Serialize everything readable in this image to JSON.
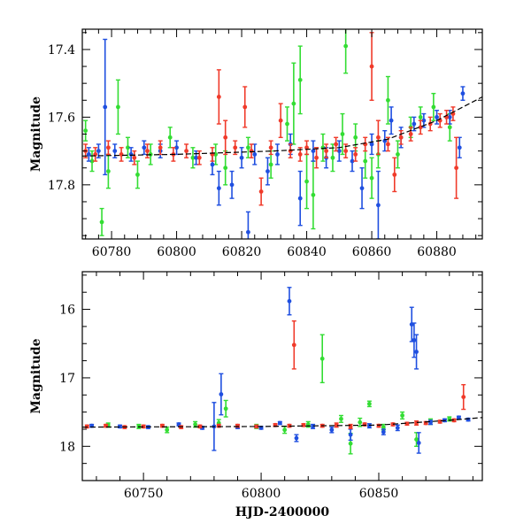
{
  "chart_data": [
    {
      "type": "scatter",
      "title": "",
      "xlabel": "",
      "ylabel": "Magnitude",
      "xlim": [
        60771,
        60894
      ],
      "ylim": [
        17.96,
        17.34
      ],
      "y_inverted": true,
      "grid": false,
      "x_ticks": [
        60780,
        60800,
        60820,
        60840,
        60860,
        60880
      ],
      "x_tick_labels": [
        "60780",
        "60800",
        "60820",
        "60840",
        "60860",
        "60880"
      ],
      "y_ticks": [
        17.4,
        17.6,
        17.8
      ],
      "y_tick_labels": [
        "17.4",
        "17.6",
        "17.8"
      ],
      "colors": {
        "blue": "#1f4fe0",
        "green": "#33dd33",
        "red": "#f03a2a",
        "model": "#000000"
      },
      "series": [
        {
          "color": "green",
          "points": [
            [
              60772,
              17.64,
              0.03
            ],
            [
              60774,
              17.73,
              0.03
            ],
            [
              60777,
              17.91,
              0.04
            ],
            [
              60779,
              17.76,
              0.05
            ],
            [
              60782,
              17.57,
              0.08
            ],
            [
              60785,
              17.69,
              0.03
            ],
            [
              60788,
              17.77,
              0.04
            ],
            [
              60792,
              17.71,
              0.03
            ],
            [
              60798,
              17.66,
              0.03
            ],
            [
              60805,
              17.72,
              0.03
            ],
            [
              60812,
              17.71,
              0.03
            ],
            [
              60815,
              17.75,
              0.05
            ],
            [
              60822,
              17.69,
              0.03
            ],
            [
              60829,
              17.74,
              0.04
            ],
            [
              60834,
              17.62,
              0.05
            ],
            [
              60836,
              17.56,
              0.12
            ],
            [
              60838,
              17.49,
              0.1
            ],
            [
              60840,
              17.79,
              0.08
            ],
            [
              60842,
              17.83,
              0.1
            ],
            [
              60845,
              17.69,
              0.04
            ],
            [
              60848,
              17.72,
              0.04
            ],
            [
              60851,
              17.65,
              0.06
            ],
            [
              60852,
              17.39,
              0.08
            ],
            [
              60855,
              17.66,
              0.04
            ],
            [
              60858,
              17.73,
              0.05
            ],
            [
              60860,
              17.78,
              0.06
            ],
            [
              60862,
              17.71,
              0.04
            ],
            [
              60865,
              17.55,
              0.07
            ],
            [
              60868,
              17.71,
              0.04
            ],
            [
              60872,
              17.63,
              0.03
            ],
            [
              60875,
              17.6,
              0.03
            ],
            [
              60879,
              17.57,
              0.04
            ],
            [
              60884,
              17.63,
              0.04
            ]
          ]
        },
        {
          "color": "blue",
          "points": [
            [
              60773,
              17.71,
              0.02
            ],
            [
              60776,
              17.7,
              0.02
            ],
            [
              60778,
              17.57,
              0.2
            ],
            [
              60781,
              17.7,
              0.02
            ],
            [
              60786,
              17.71,
              0.02
            ],
            [
              60790,
              17.69,
              0.02
            ],
            [
              60795,
              17.7,
              0.02
            ],
            [
              60800,
              17.69,
              0.02
            ],
            [
              60806,
              17.72,
              0.02
            ],
            [
              60811,
              17.74,
              0.03
            ],
            [
              60813,
              17.81,
              0.05
            ],
            [
              60817,
              17.8,
              0.04
            ],
            [
              60820,
              17.72,
              0.03
            ],
            [
              60822,
              17.94,
              0.06
            ],
            [
              60824,
              17.71,
              0.03
            ],
            [
              60828,
              17.76,
              0.04
            ],
            [
              60831,
              17.71,
              0.03
            ],
            [
              60835,
              17.68,
              0.03
            ],
            [
              60838,
              17.84,
              0.08
            ],
            [
              60842,
              17.7,
              0.03
            ],
            [
              60846,
              17.72,
              0.03
            ],
            [
              60850,
              17.7,
              0.03
            ],
            [
              60854,
              17.73,
              0.03
            ],
            [
              60857,
              17.81,
              0.06
            ],
            [
              60860,
              17.68,
              0.03
            ],
            [
              60862,
              17.86,
              0.1
            ],
            [
              60864,
              17.67,
              0.03
            ],
            [
              60866,
              17.61,
              0.04
            ],
            [
              60869,
              17.66,
              0.03
            ],
            [
              60873,
              17.62,
              0.02
            ],
            [
              60876,
              17.61,
              0.02
            ],
            [
              60880,
              17.6,
              0.02
            ],
            [
              60884,
              17.6,
              0.02
            ],
            [
              60887,
              17.69,
              0.03
            ],
            [
              60888,
              17.53,
              0.02
            ]
          ]
        },
        {
          "color": "red",
          "points": [
            [
              60772,
              17.7,
              0.02
            ],
            [
              60775,
              17.71,
              0.02
            ],
            [
              60779,
              17.69,
              0.02
            ],
            [
              60783,
              17.71,
              0.02
            ],
            [
              60787,
              17.72,
              0.02
            ],
            [
              60791,
              17.7,
              0.02
            ],
            [
              60795,
              17.69,
              0.02
            ],
            [
              60799,
              17.71,
              0.02
            ],
            [
              60803,
              17.7,
              0.02
            ],
            [
              60807,
              17.72,
              0.02
            ],
            [
              60811,
              17.71,
              0.02
            ],
            [
              60813,
              17.54,
              0.08
            ],
            [
              60815,
              17.66,
              0.05
            ],
            [
              60818,
              17.69,
              0.02
            ],
            [
              60821,
              17.57,
              0.06
            ],
            [
              60823,
              17.7,
              0.02
            ],
            [
              60826,
              17.82,
              0.04
            ],
            [
              60829,
              17.69,
              0.02
            ],
            [
              60832,
              17.61,
              0.05
            ],
            [
              60835,
              17.7,
              0.02
            ],
            [
              60838,
              17.71,
              0.02
            ],
            [
              60840,
              17.69,
              0.02
            ],
            [
              60843,
              17.72,
              0.03
            ],
            [
              60846,
              17.7,
              0.02
            ],
            [
              60849,
              17.68,
              0.02
            ],
            [
              60852,
              17.7,
              0.02
            ],
            [
              60855,
              17.71,
              0.02
            ],
            [
              60858,
              17.68,
              0.02
            ],
            [
              60860,
              17.45,
              0.1
            ],
            [
              60862,
              17.66,
              0.05
            ],
            [
              60865,
              17.68,
              0.02
            ],
            [
              60867,
              17.77,
              0.05
            ],
            [
              60869,
              17.66,
              0.02
            ],
            [
              60872,
              17.65,
              0.02
            ],
            [
              60875,
              17.63,
              0.02
            ],
            [
              60878,
              17.62,
              0.02
            ],
            [
              60881,
              17.61,
              0.02
            ],
            [
              60883,
              17.6,
              0.02
            ],
            [
              60885,
              17.59,
              0.02
            ],
            [
              60886,
              17.75,
              0.09
            ]
          ]
        }
      ],
      "model_line": [
        [
          60771,
          17.715
        ],
        [
          60800,
          17.71
        ],
        [
          60830,
          17.7
        ],
        [
          60850,
          17.69
        ],
        [
          60865,
          17.665
        ],
        [
          60880,
          17.61
        ],
        [
          60894,
          17.54
        ]
      ]
    },
    {
      "type": "scatter",
      "title": "",
      "xlabel": "HJD-2400000",
      "ylabel": "Magnitude",
      "xlim": [
        60724,
        60894
      ],
      "ylim": [
        18.5,
        15.45
      ],
      "y_inverted": true,
      "grid": false,
      "x_ticks": [
        60750,
        60800,
        60850
      ],
      "x_tick_labels": [
        "60750",
        "60800",
        "60850"
      ],
      "y_ticks": [
        16,
        17,
        18
      ],
      "y_tick_labels": [
        "16",
        "17",
        "18"
      ],
      "colors": {
        "blue": "#1f4fe0",
        "green": "#33dd33",
        "red": "#f03a2a",
        "model": "#000000"
      },
      "series": [
        {
          "color": "green",
          "points": [
            [
              60735,
              17.69,
              0.03
            ],
            [
              60748,
              17.71,
              0.03
            ],
            [
              60760,
              17.76,
              0.04
            ],
            [
              60772,
              17.68,
              0.04
            ],
            [
              60782,
              17.66,
              0.05
            ],
            [
              60785,
              17.45,
              0.12
            ],
            [
              60798,
              17.71,
              0.03
            ],
            [
              60810,
              17.76,
              0.05
            ],
            [
              60820,
              17.68,
              0.04
            ],
            [
              60826,
              16.72,
              0.35
            ],
            [
              60834,
              17.6,
              0.05
            ],
            [
              60838,
              17.96,
              0.15
            ],
            [
              60842,
              17.65,
              0.06
            ],
            [
              60846,
              17.38,
              0.04
            ],
            [
              60852,
              17.72,
              0.04
            ],
            [
              60860,
              17.55,
              0.05
            ],
            [
              60866,
              17.9,
              0.1
            ],
            [
              60872,
              17.64,
              0.04
            ],
            [
              60880,
              17.6,
              0.03
            ]
          ]
        },
        {
          "color": "blue",
          "points": [
            [
              60728,
              17.7,
              0.02
            ],
            [
              60740,
              17.71,
              0.02
            ],
            [
              60752,
              17.72,
              0.02
            ],
            [
              60765,
              17.68,
              0.02
            ],
            [
              60775,
              17.73,
              0.02
            ],
            [
              60780,
              17.71,
              0.35
            ],
            [
              60783,
              17.24,
              0.3
            ],
            [
              60790,
              17.72,
              0.02
            ],
            [
              60800,
              17.73,
              0.02
            ],
            [
              60808,
              17.66,
              0.02
            ],
            [
              60812,
              15.88,
              0.2
            ],
            [
              60815,
              17.88,
              0.05
            ],
            [
              60822,
              17.71,
              0.03
            ],
            [
              60830,
              17.76,
              0.04
            ],
            [
              60838,
              17.83,
              0.08
            ],
            [
              60846,
              17.7,
              0.03
            ],
            [
              60852,
              17.79,
              0.04
            ],
            [
              60858,
              17.73,
              0.04
            ],
            [
              60864,
              16.22,
              0.25
            ],
            [
              60865,
              16.45,
              0.25
            ],
            [
              60866,
              16.62,
              0.25
            ],
            [
              60867,
              17.95,
              0.15
            ],
            [
              60872,
              17.65,
              0.03
            ],
            [
              60878,
              17.62,
              0.02
            ],
            [
              60884,
              17.58,
              0.02
            ],
            [
              60888,
              17.61,
              0.02
            ]
          ]
        },
        {
          "color": "red",
          "points": [
            [
              60726,
              17.71,
              0.02
            ],
            [
              60734,
              17.7,
              0.02
            ],
            [
              60742,
              17.72,
              0.02
            ],
            [
              60750,
              17.71,
              0.02
            ],
            [
              60758,
              17.7,
              0.02
            ],
            [
              60766,
              17.72,
              0.02
            ],
            [
              60774,
              17.71,
              0.02
            ],
            [
              60782,
              17.7,
              0.02
            ],
            [
              60790,
              17.7,
              0.02
            ],
            [
              60798,
              17.71,
              0.02
            ],
            [
              60806,
              17.69,
              0.02
            ],
            [
              60812,
              17.7,
              0.02
            ],
            [
              60814,
              16.52,
              0.35
            ],
            [
              60818,
              17.69,
              0.02
            ],
            [
              60826,
              17.7,
              0.02
            ],
            [
              60832,
              17.69,
              0.03
            ],
            [
              60838,
              17.71,
              0.03
            ],
            [
              60844,
              17.68,
              0.02
            ],
            [
              60850,
              17.7,
              0.02
            ],
            [
              60856,
              17.68,
              0.02
            ],
            [
              60862,
              17.67,
              0.02
            ],
            [
              60866,
              17.66,
              0.03
            ],
            [
              60870,
              17.66,
              0.02
            ],
            [
              60876,
              17.64,
              0.02
            ],
            [
              60882,
              17.62,
              0.02
            ],
            [
              60886,
              17.28,
              0.18
            ]
          ]
        }
      ],
      "model_line": [
        [
          60724,
          17.72
        ],
        [
          60800,
          17.71
        ],
        [
          60850,
          17.69
        ],
        [
          60880,
          17.62
        ],
        [
          60894,
          17.58
        ]
      ]
    }
  ]
}
